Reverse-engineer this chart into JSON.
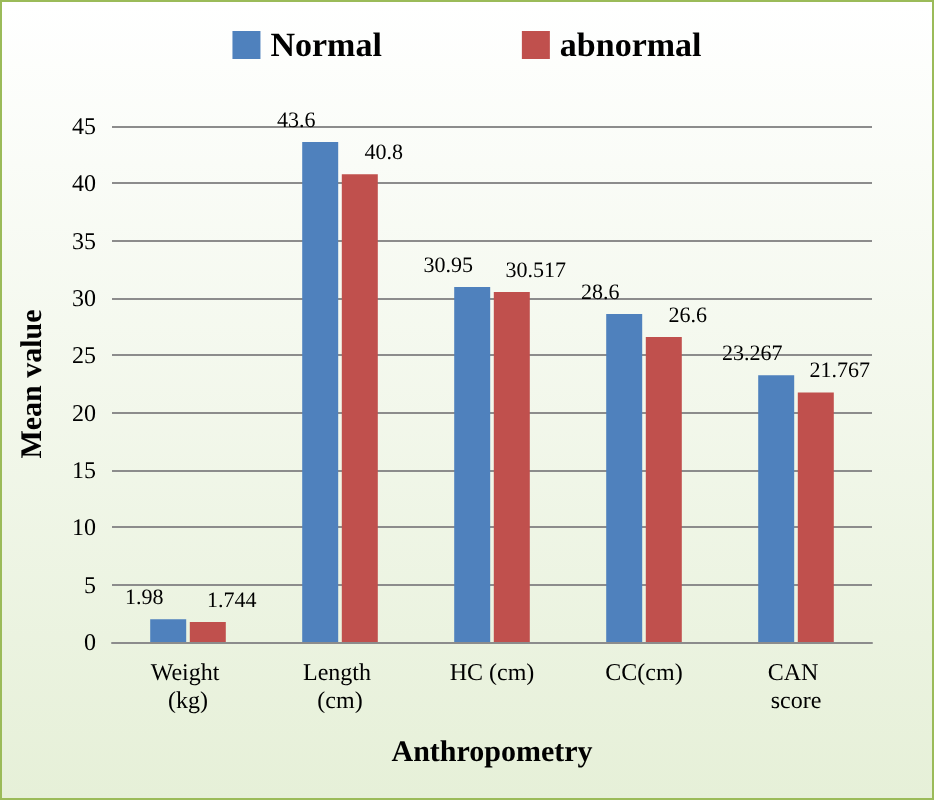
{
  "chart_data": {
    "type": "bar",
    "xlabel": "Anthropometry",
    "ylabel": "Mean value",
    "categories": [
      "Weight (kg)",
      "Length (cm)",
      "HC (cm)",
      "CC(cm)",
      "CAN score"
    ],
    "series": [
      {
        "name": "Normal",
        "color": "#4f81bd",
        "values": [
          1.98,
          43.6,
          30.95,
          28.6,
          23.267
        ]
      },
      {
        "name": "abnormal",
        "color": "#c0504d",
        "values": [
          1.744,
          40.8,
          30.517,
          26.6,
          21.767
        ]
      }
    ],
    "ylim": [
      0,
      45
    ],
    "yticks": [
      0,
      5,
      10,
      15,
      20,
      25,
      30,
      35,
      40,
      45
    ],
    "grid": "y",
    "legend": "top",
    "data_labels": true
  }
}
